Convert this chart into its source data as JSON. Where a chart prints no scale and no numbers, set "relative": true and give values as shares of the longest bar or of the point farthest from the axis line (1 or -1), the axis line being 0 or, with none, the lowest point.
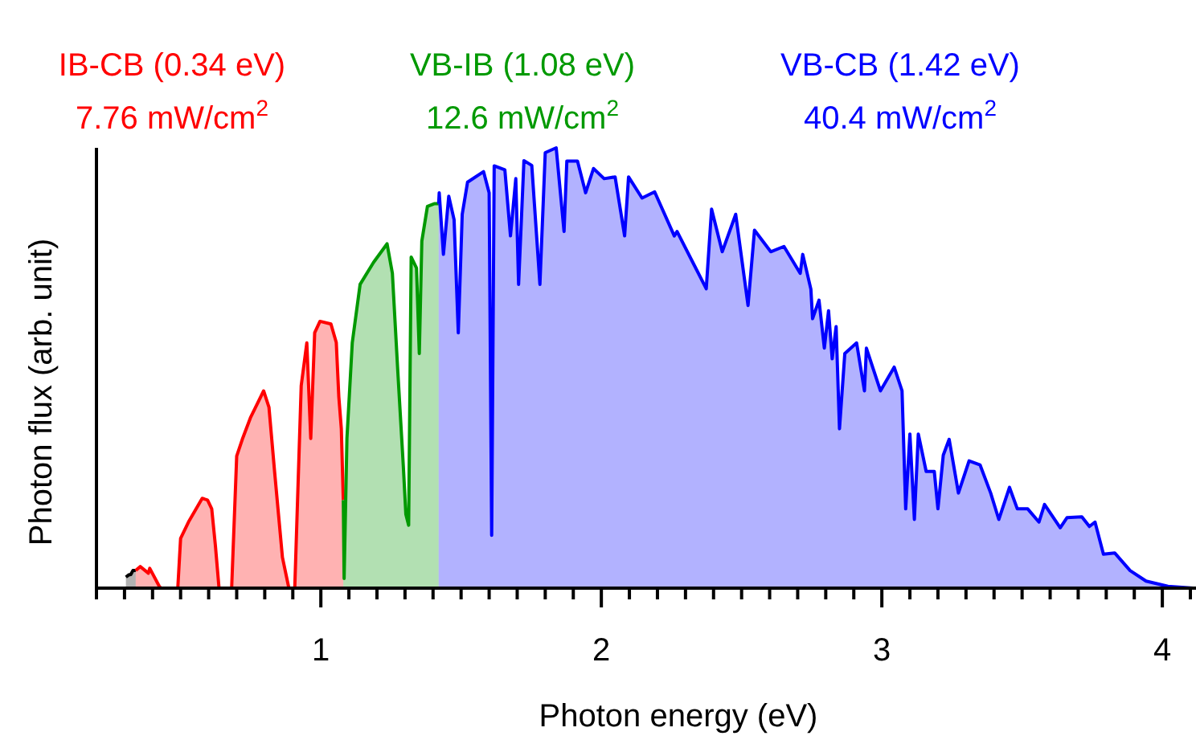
{
  "chart_data": {
    "type": "area",
    "relative": true,
    "xlabel": "Photon energy (eV)",
    "ylabel": "Photon flux (arb. unit)",
    "legend": "top",
    "xlim": [
      0.2,
      4.12
    ],
    "xticks": [
      {
        "value": 0.2,
        "label": null
      },
      {
        "value": 0.3,
        "label": null
      },
      {
        "value": 0.4,
        "label": null
      },
      {
        "value": 0.5,
        "label": null
      },
      {
        "value": 0.6,
        "label": null
      },
      {
        "value": 0.7,
        "label": null
      },
      {
        "value": 0.8,
        "label": null
      },
      {
        "value": 0.9,
        "label": null
      },
      1,
      {
        "value": 1.1,
        "label": null
      },
      {
        "value": 1.2,
        "label": null
      },
      {
        "value": 1.3,
        "label": null
      },
      {
        "value": 1.4,
        "label": null
      },
      {
        "value": 1.5,
        "label": null
      },
      {
        "value": 1.6,
        "label": null
      },
      {
        "value": 1.7,
        "label": null
      },
      {
        "value": 1.8,
        "label": null
      },
      {
        "value": 1.9,
        "label": null
      },
      2,
      {
        "value": 2.1,
        "label": null
      },
      {
        "value": 2.2,
        "label": null
      },
      {
        "value": 2.3,
        "label": null
      },
      {
        "value": 2.4,
        "label": null
      },
      {
        "value": 2.5,
        "label": null
      },
      {
        "value": 2.6,
        "label": null
      },
      {
        "value": 2.7,
        "label": null
      },
      {
        "value": 2.8,
        "label": null
      },
      {
        "value": 2.9,
        "label": null
      },
      3,
      {
        "value": 3.1,
        "label": null
      },
      {
        "value": 3.2,
        "label": null
      },
      {
        "value": 3.3,
        "label": null
      },
      {
        "value": 3.4,
        "label": null
      },
      {
        "value": 3.5,
        "label": null
      },
      {
        "value": 3.6,
        "label": null
      },
      {
        "value": 3.7,
        "label": null
      },
      {
        "value": 3.8,
        "label": null
      },
      {
        "value": 3.9,
        "label": null
      },
      4,
      {
        "value": 4.1,
        "label": null
      }
    ],
    "annotations": [
      "7.76 mW/cm$^{2}$",
      "12.6 mW/cm$^{2}$",
      "40.4 mW/cm$^{2}$"
    ],
    "series": [
      {
        "color": "#000000",
        "x": [
          0.305,
          0.315,
          0.3225,
          0.33,
          0.34
        ],
        "values": [
          0.025,
          0.03,
          0.031,
          0.04,
          0.04
        ]
      },
      {
        "name": "IB-CB (0.34 eV)",
        "color": "#ff0000",
        "x": [
          0.34,
          0.356,
          0.385,
          0.39,
          0.424,
          0.43,
          0.49,
          0.5,
          0.528,
          0.577,
          0.596,
          0.611,
          0.624,
          0.637,
          0.682,
          0.7,
          0.72,
          0.749,
          0.796,
          0.815,
          0.835,
          0.863,
          0.886,
          0.907,
          0.93,
          0.95,
          0.964,
          0.978,
          0.997,
          1.036,
          1.055,
          1.064,
          1.073,
          1.08
        ],
        "values": [
          0.04,
          0.049,
          0.034,
          0.045,
          0.004,
          0,
          0,
          0.113,
          0.15,
          0.204,
          0.2,
          0.18,
          0.097,
          0,
          0,
          0.3,
          0.338,
          0.387,
          0.448,
          0.411,
          0.265,
          0.07,
          0,
          0,
          0.46,
          0.557,
          0.34,
          0.58,
          0.606,
          0.6,
          0.558,
          0.435,
          0.362,
          0.2
        ]
      },
      {
        "name": "VB-IB (1.08 eV)",
        "color": "#009900",
        "x": [
          1.08,
          1.083,
          1.093,
          1.112,
          1.14,
          1.188,
          1.236,
          1.255,
          1.274,
          1.294,
          1.303,
          1.313,
          1.322,
          1.341,
          1.351,
          1.36,
          1.38,
          1.404,
          1.42
        ],
        "values": [
          0.2,
          0.022,
          0.34,
          0.557,
          0.69,
          0.74,
          0.782,
          0.715,
          0.496,
          0.277,
          0.168,
          0.143,
          0.752,
          0.727,
          0.533,
          0.788,
          0.867,
          0.873,
          0.873
        ]
      },
      {
        "name": "VB-CB (1.42 eV)",
        "color": "#0000ff",
        "x": [
          1.42,
          1.422,
          1.437,
          1.456,
          1.475,
          1.49,
          1.504,
          1.523,
          1.58,
          1.6,
          1.609,
          1.618,
          1.656,
          1.676,
          1.695,
          1.705,
          1.724,
          1.752,
          1.781,
          1.8,
          1.839,
          1.867,
          1.877,
          1.915,
          1.944,
          1.972,
          2.01,
          2.049,
          2.083,
          2.097,
          2.145,
          2.19,
          2.26,
          2.27,
          2.326,
          2.374,
          2.393,
          2.431,
          2.479,
          2.523,
          2.546,
          2.604,
          2.651,
          2.709,
          2.718,
          2.747,
          2.753,
          2.776,
          2.795,
          2.81,
          2.823,
          2.837,
          2.849,
          2.868,
          2.91,
          2.938,
          2.945,
          2.995,
          3.044,
          3.072,
          3.085,
          3.1,
          3.116,
          3.13,
          3.158,
          3.187,
          3.2,
          3.219,
          3.24,
          3.273,
          3.311,
          3.35,
          3.388,
          3.417,
          3.455,
          3.483,
          3.52,
          3.56,
          3.58,
          3.636,
          3.66,
          3.713,
          3.74,
          3.76,
          3.79,
          3.83,
          3.885,
          3.942,
          4.02,
          4.11
        ],
        "values": [
          0.873,
          0.898,
          0.758,
          0.89,
          0.837,
          0.58,
          0.849,
          0.922,
          0.946,
          0.898,
          0.12,
          0.959,
          0.95,
          0.8,
          0.93,
          0.69,
          0.971,
          0.96,
          0.69,
          0.989,
          1,
          0.81,
          0.97,
          0.97,
          0.898,
          0.953,
          0.93,
          0.934,
          0.8,
          0.934,
          0.886,
          0.9,
          0.8,
          0.81,
          0.74,
          0.68,
          0.861,
          0.764,
          0.849,
          0.642,
          0.813,
          0.764,
          0.776,
          0.715,
          0.758,
          0.679,
          0.612,
          0.654,
          0.545,
          0.63,
          0.521,
          0.594,
          0.362,
          0.533,
          0.557,
          0.448,
          0.545,
          0.448,
          0.502,
          0.448,
          0.18,
          0.35,
          0.156,
          0.35,
          0.265,
          0.265,
          0.18,
          0.302,
          0.338,
          0.216,
          0.289,
          0.28,
          0.216,
          0.156,
          0.229,
          0.18,
          0.18,
          0.15,
          0.19,
          0.137,
          0.16,
          0.162,
          0.14,
          0.15,
          0.077,
          0.08,
          0.04,
          0.016,
          0.004,
          0
        ]
      }
    ]
  }
}
